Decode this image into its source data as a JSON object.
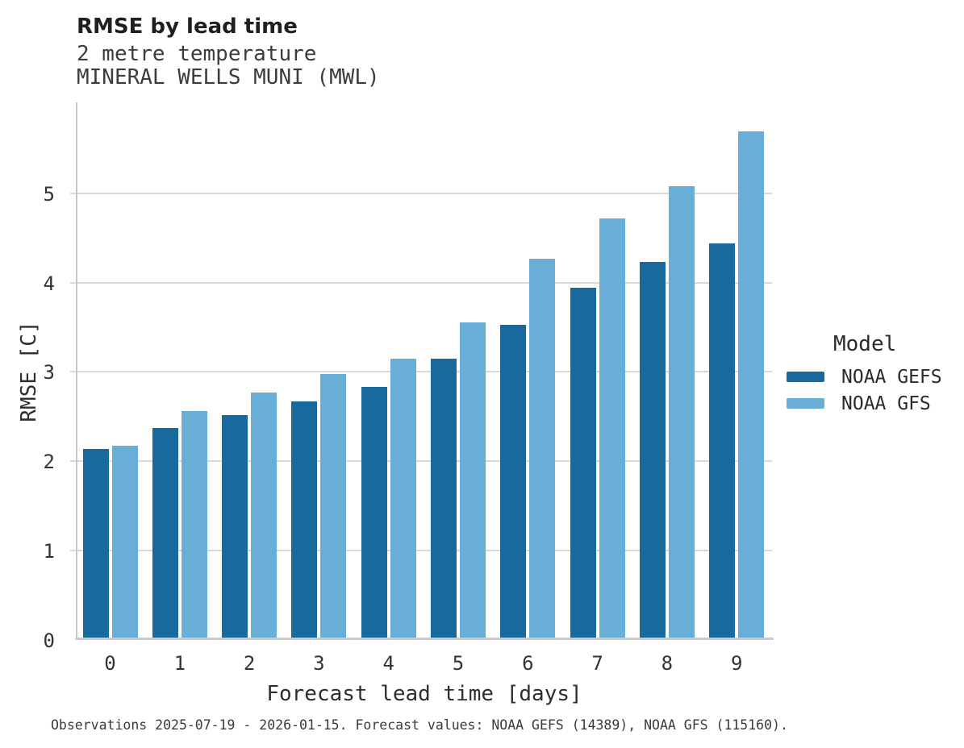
{
  "header": {
    "title": "RMSE by lead time",
    "subtitle1": "2 metre temperature",
    "subtitle2": "MINERAL WELLS MUNI (MWL)"
  },
  "legend": {
    "title": "Model"
  },
  "footer": {
    "caption": "Observations 2025-07-19 - 2026-01-15. Forecast values: NOAA GEFS (14389), NOAA GFS (115160)."
  },
  "colors": {
    "gefs_bar": "#186a9c",
    "gfs_bar": "#69aed7",
    "gridline": "#d9d9d9",
    "axis_spine": "#c9c9c9"
  },
  "chart_data": {
    "type": "bar",
    "title": "RMSE by lead time",
    "subtitle": [
      "2 metre temperature",
      "MINERAL WELLS MUNI (MWL)"
    ],
    "categories": [
      "0",
      "1",
      "2",
      "3",
      "4",
      "5",
      "6",
      "7",
      "8",
      "9"
    ],
    "series": [
      {
        "name": "NOAA GEFS",
        "color": "#186a9c",
        "values": [
          2.14,
          2.37,
          2.52,
          2.67,
          2.83,
          3.15,
          3.53,
          3.94,
          4.23,
          4.44
        ]
      },
      {
        "name": "NOAA GFS",
        "color": "#69aed7",
        "values": [
          2.17,
          2.56,
          2.77,
          2.98,
          3.15,
          3.56,
          4.27,
          4.72,
          5.08,
          5.7
        ]
      }
    ],
    "xlabel": "Forecast lead time [days]",
    "ylabel": "RMSE [C]",
    "ylim": [
      0,
      6.03
    ],
    "yticks": [
      "0",
      "1",
      "2",
      "3",
      "4",
      "5"
    ],
    "grid": "horizontal",
    "legend_position": "right",
    "legend_title": "Model"
  }
}
